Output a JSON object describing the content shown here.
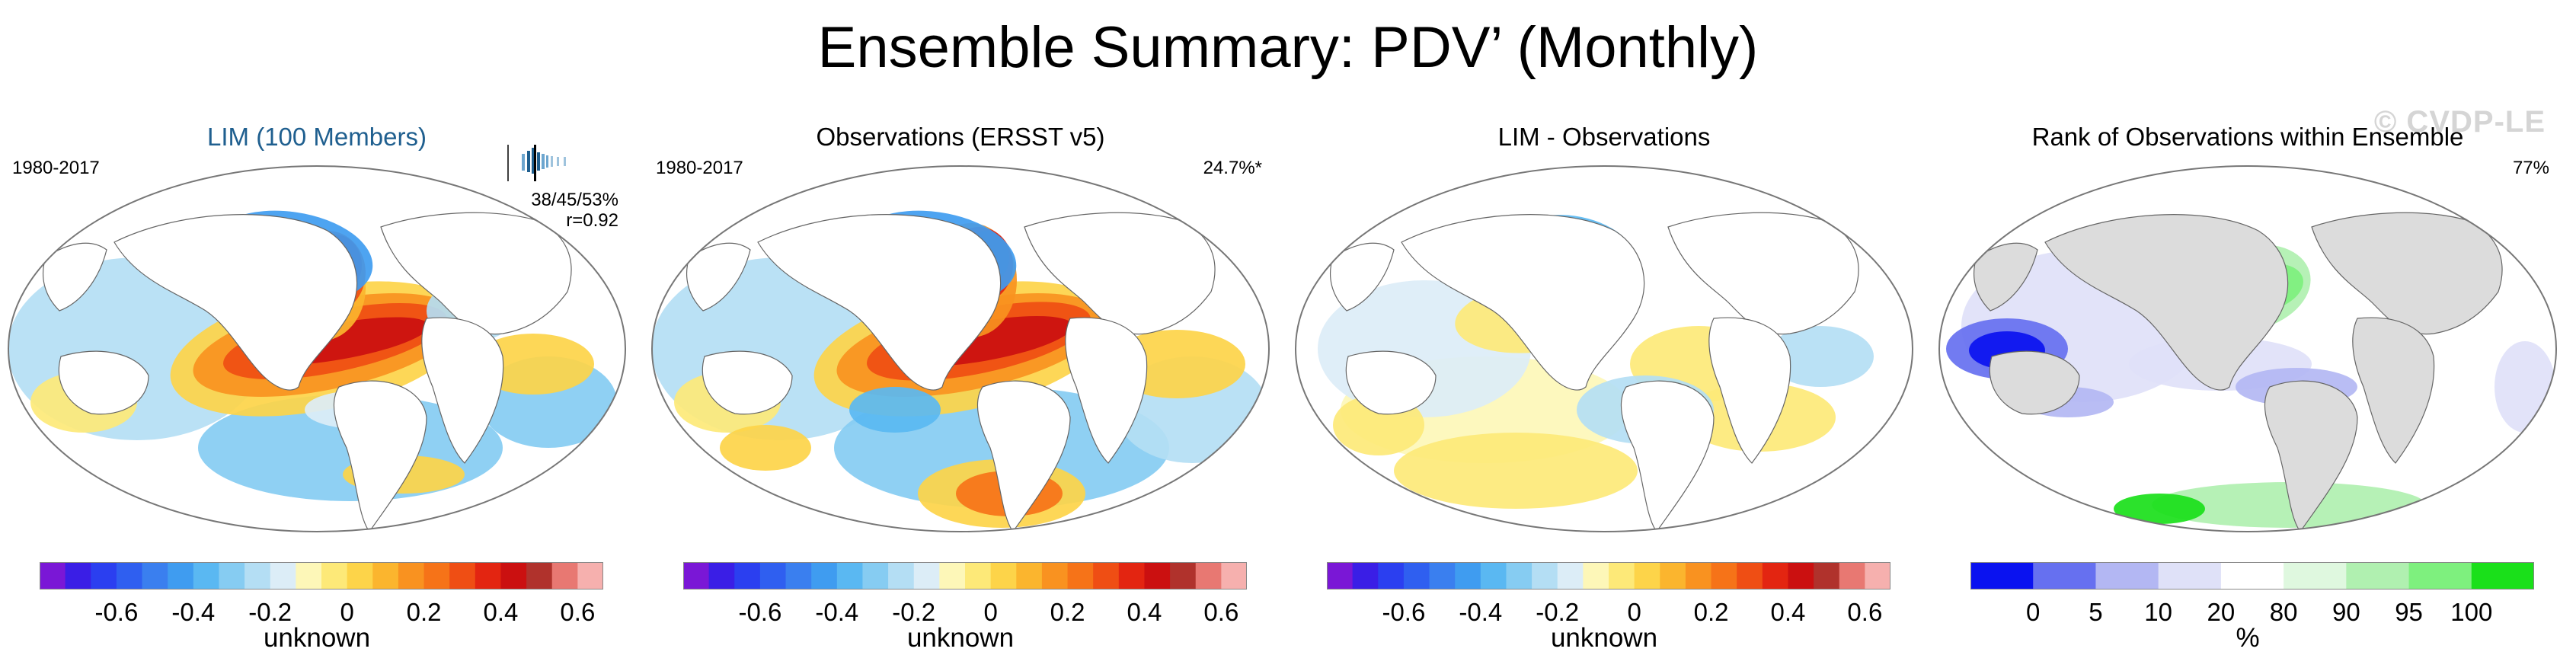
{
  "title": "Ensemble Summary: PDV’ (Monthly)",
  "watermark": "© CVDP-LE",
  "panels": [
    {
      "title": "LIM (100 Members)",
      "period": "1980-2017",
      "stat_line1": "38/45/53%",
      "stat_line2": "r=0.92",
      "colorbar": {
        "labels": [
          "-0.6",
          "-0.4",
          "-0.2",
          "0",
          "0.2",
          "0.4",
          "0.6"
        ],
        "units": "unknown"
      }
    },
    {
      "title": "Observations (ERSST v5)",
      "period": "1980-2017",
      "stat_line1": "24.7%*",
      "colorbar": {
        "labels": [
          "-0.6",
          "-0.4",
          "-0.2",
          "0",
          "0.2",
          "0.4",
          "0.6"
        ],
        "units": "unknown"
      }
    },
    {
      "title": "LIM - Observations",
      "colorbar": {
        "labels": [
          "-0.6",
          "-0.4",
          "-0.2",
          "0",
          "0.2",
          "0.4",
          "0.6"
        ],
        "units": "unknown"
      }
    },
    {
      "title": "Rank of Observations within Ensemble",
      "stat_line1": "77%",
      "colorbar": {
        "labels": [
          "0",
          "5",
          "10",
          "20",
          "80",
          "90",
          "95",
          "100"
        ],
        "units": "%"
      }
    }
  ],
  "colors": {
    "diverging": [
      "#7a17d6",
      "#3a1ee6",
      "#2b3ff0",
      "#2f5ff0",
      "#3a7fef",
      "#3f9cf0",
      "#5ab8f2",
      "#86ccf2",
      "#b4def4",
      "#dcedf7",
      "#fdf7b8",
      "#fde978",
      "#fdd449",
      "#fbb52e",
      "#f99220",
      "#f67318",
      "#ef4e14",
      "#e32511",
      "#cb1010",
      "#b0322c",
      "#e87872",
      "#f6b0ae"
    ],
    "rank": [
      "#0a12f0",
      "#6670f0",
      "#b3b7f3",
      "#dfe1f8",
      "#ffffff",
      "#dff8df",
      "#b0f0b0",
      "#7ef07e",
      "#1ae01a"
    ],
    "land": "#ffffff",
    "land_rank": "#dcdcdc"
  }
}
